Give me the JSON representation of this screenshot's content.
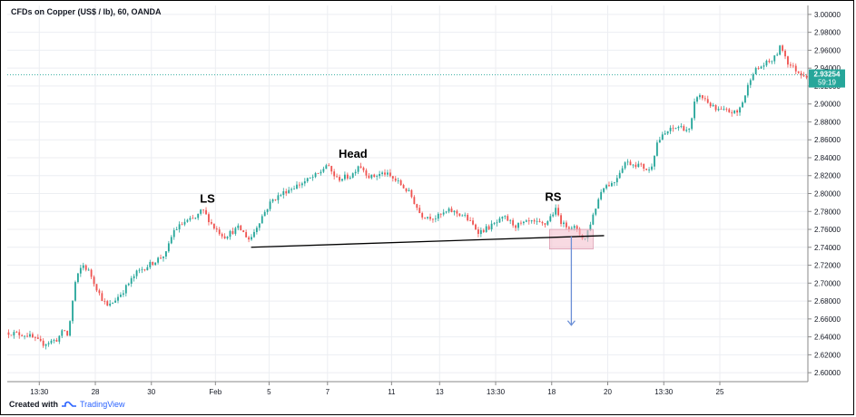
{
  "chart_title": "CFDs on Copper (US$ / lb), 60, OANDA",
  "footer": {
    "created_with": "Created with",
    "brand": "TradingView",
    "brand_icon": "tradingview-logo-icon"
  },
  "price_tag": {
    "value": "2.93254",
    "countdown": "59:19",
    "color": "#26a69a"
  },
  "colors": {
    "up": "#26a69a",
    "down": "#ef5350",
    "neckline": "#000000",
    "target_arrow": "#6b8fd6",
    "rs_box": "#f3c1cf"
  },
  "chart_data": {
    "type": "candlestick",
    "title": "CFDs on Copper (US$ / lb), 60, OANDA",
    "xlabel": "",
    "ylabel": "",
    "ylim": [
      2.59,
      3.01
    ],
    "yticks": [
      "3.00000",
      "2.98000",
      "2.96000",
      "2.94000",
      "2.92000",
      "2.90000",
      "2.88000",
      "2.86000",
      "2.84000",
      "2.82000",
      "2.80000",
      "2.78000",
      "2.76000",
      "2.74000",
      "2.72000",
      "2.70000",
      "2.68000",
      "2.66000",
      "2.64000",
      "2.62000",
      "2.60000"
    ],
    "xticks": [
      "13:30",
      "28",
      "30",
      "Feb",
      "5",
      "7",
      "11",
      "13",
      "13:30",
      "18",
      "20",
      "13:30",
      "25"
    ],
    "price_path": [
      {
        "t": 0,
        "p": 2.645
      },
      {
        "t": 3,
        "p": 2.642
      },
      {
        "t": 5,
        "p": 2.632
      },
      {
        "t": 7,
        "p": 2.637
      },
      {
        "t": 8,
        "p": 2.648
      },
      {
        "t": 8.5,
        "p": 2.64
      },
      {
        "t": 9.5,
        "p": 2.7
      },
      {
        "t": 10.5,
        "p": 2.721
      },
      {
        "t": 11.5,
        "p": 2.712
      },
      {
        "t": 13,
        "p": 2.685
      },
      {
        "t": 14,
        "p": 2.673
      },
      {
        "t": 16,
        "p": 2.69
      },
      {
        "t": 18,
        "p": 2.712
      },
      {
        "t": 20,
        "p": 2.722
      },
      {
        "t": 22,
        "p": 2.733
      },
      {
        "t": 23,
        "p": 2.758
      },
      {
        "t": 24.5,
        "p": 2.768
      },
      {
        "t": 26,
        "p": 2.772
      },
      {
        "t": 27,
        "p": 2.782
      },
      {
        "t": 28.5,
        "p": 2.763
      },
      {
        "t": 30,
        "p": 2.752
      },
      {
        "t": 32,
        "p": 2.762
      },
      {
        "t": 33.5,
        "p": 2.748
      },
      {
        "t": 35,
        "p": 2.772
      },
      {
        "t": 36.5,
        "p": 2.792
      },
      {
        "t": 38.5,
        "p": 2.803
      },
      {
        "t": 41,
        "p": 2.813
      },
      {
        "t": 43,
        "p": 2.822
      },
      {
        "t": 44,
        "p": 2.832
      },
      {
        "t": 45.5,
        "p": 2.816
      },
      {
        "t": 47.5,
        "p": 2.82
      },
      {
        "t": 48.5,
        "p": 2.833
      },
      {
        "t": 50,
        "p": 2.818
      },
      {
        "t": 52,
        "p": 2.823
      },
      {
        "t": 54,
        "p": 2.812
      },
      {
        "t": 55.5,
        "p": 2.8
      },
      {
        "t": 57,
        "p": 2.776
      },
      {
        "t": 59,
        "p": 2.773
      },
      {
        "t": 61,
        "p": 2.781
      },
      {
        "t": 63,
        "p": 2.775
      },
      {
        "t": 65,
        "p": 2.757
      },
      {
        "t": 67,
        "p": 2.765
      },
      {
        "t": 68.5,
        "p": 2.773
      },
      {
        "t": 70,
        "p": 2.764
      },
      {
        "t": 72,
        "p": 2.768
      },
      {
        "t": 74,
        "p": 2.765
      },
      {
        "t": 75.5,
        "p": 2.782
      },
      {
        "t": 76.5,
        "p": 2.765
      },
      {
        "t": 78,
        "p": 2.763
      },
      {
        "t": 79.5,
        "p": 2.748
      },
      {
        "t": 80.5,
        "p": 2.772
      },
      {
        "t": 82,
        "p": 2.808
      },
      {
        "t": 83.5,
        "p": 2.812
      },
      {
        "t": 85,
        "p": 2.835
      },
      {
        "t": 87,
        "p": 2.832
      },
      {
        "t": 88.5,
        "p": 2.825
      },
      {
        "t": 89.5,
        "p": 2.858
      },
      {
        "t": 91,
        "p": 2.87
      },
      {
        "t": 92.5,
        "p": 2.875
      },
      {
        "t": 94,
        "p": 2.87
      },
      {
        "t": 94.8,
        "p": 2.91
      },
      {
        "t": 96,
        "p": 2.906
      },
      {
        "t": 97.5,
        "p": 2.893
      },
      {
        "t": 99,
        "p": 2.892
      },
      {
        "t": 100.5,
        "p": 2.89
      },
      {
        "t": 101.5,
        "p": 2.908
      },
      {
        "t": 102.5,
        "p": 2.935
      },
      {
        "t": 104,
        "p": 2.943
      },
      {
        "t": 105.5,
        "p": 2.95
      },
      {
        "t": 106.5,
        "p": 2.965
      },
      {
        "t": 107.5,
        "p": 2.945
      },
      {
        "t": 109,
        "p": 2.935
      },
      {
        "t": 110,
        "p": 2.932
      }
    ],
    "annotations": [
      {
        "label": "LS",
        "t": 27.5,
        "p": 2.79
      },
      {
        "label": "Head",
        "t": 47.5,
        "p": 2.84
      },
      {
        "label": "RS",
        "t": 75,
        "p": 2.792
      }
    ],
    "neckline": {
      "t1": 33.5,
      "p1": 2.74,
      "t2": 82.0,
      "p2": 2.753
    },
    "right_shoulder_box": {
      "t1": 74.5,
      "t2": 80.5,
      "p_low": 2.738,
      "p_high": 2.76
    },
    "target_arrow": {
      "t": 77.5,
      "p_from": 2.752,
      "p_to": 2.653
    }
  }
}
